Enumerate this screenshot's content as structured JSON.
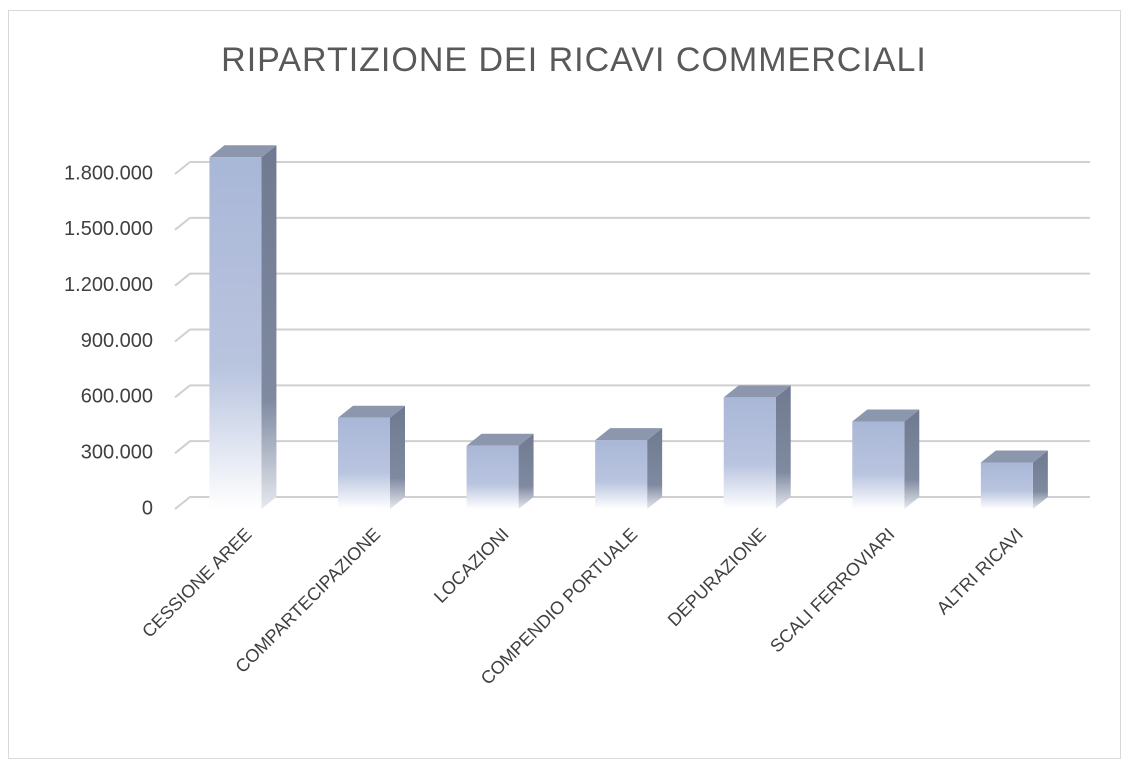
{
  "chart_data": {
    "type": "bar3d",
    "title": "RIPARTIZIONE DEI RICAVI COMMERCIALI",
    "categories": [
      "CESSIONE AREE",
      "COMPARTECIPAZIONE",
      "LOCAZIONI",
      "COMPENDIO PORTUALE",
      "DEPURAZIONE",
      "SCALI FERROVIARI",
      "ALTRI RICAVI"
    ],
    "values": [
      1890000,
      490000,
      340000,
      370000,
      600000,
      470000,
      250000
    ],
    "color": "#a9b7d7",
    "ylim": [
      0,
      1800000
    ],
    "yticks": [
      0,
      {
        "value": 300000,
        "label": "300.000"
      },
      {
        "value": 600000,
        "label": "600.000"
      },
      {
        "value": 900000,
        "label": "900.000"
      },
      {
        "value": 1200000,
        "label": "1.200.000"
      },
      {
        "value": 1500000,
        "label": "1.500.000"
      },
      {
        "value": 1800000,
        "label": "1.800.000"
      }
    ],
    "grid": true
  }
}
